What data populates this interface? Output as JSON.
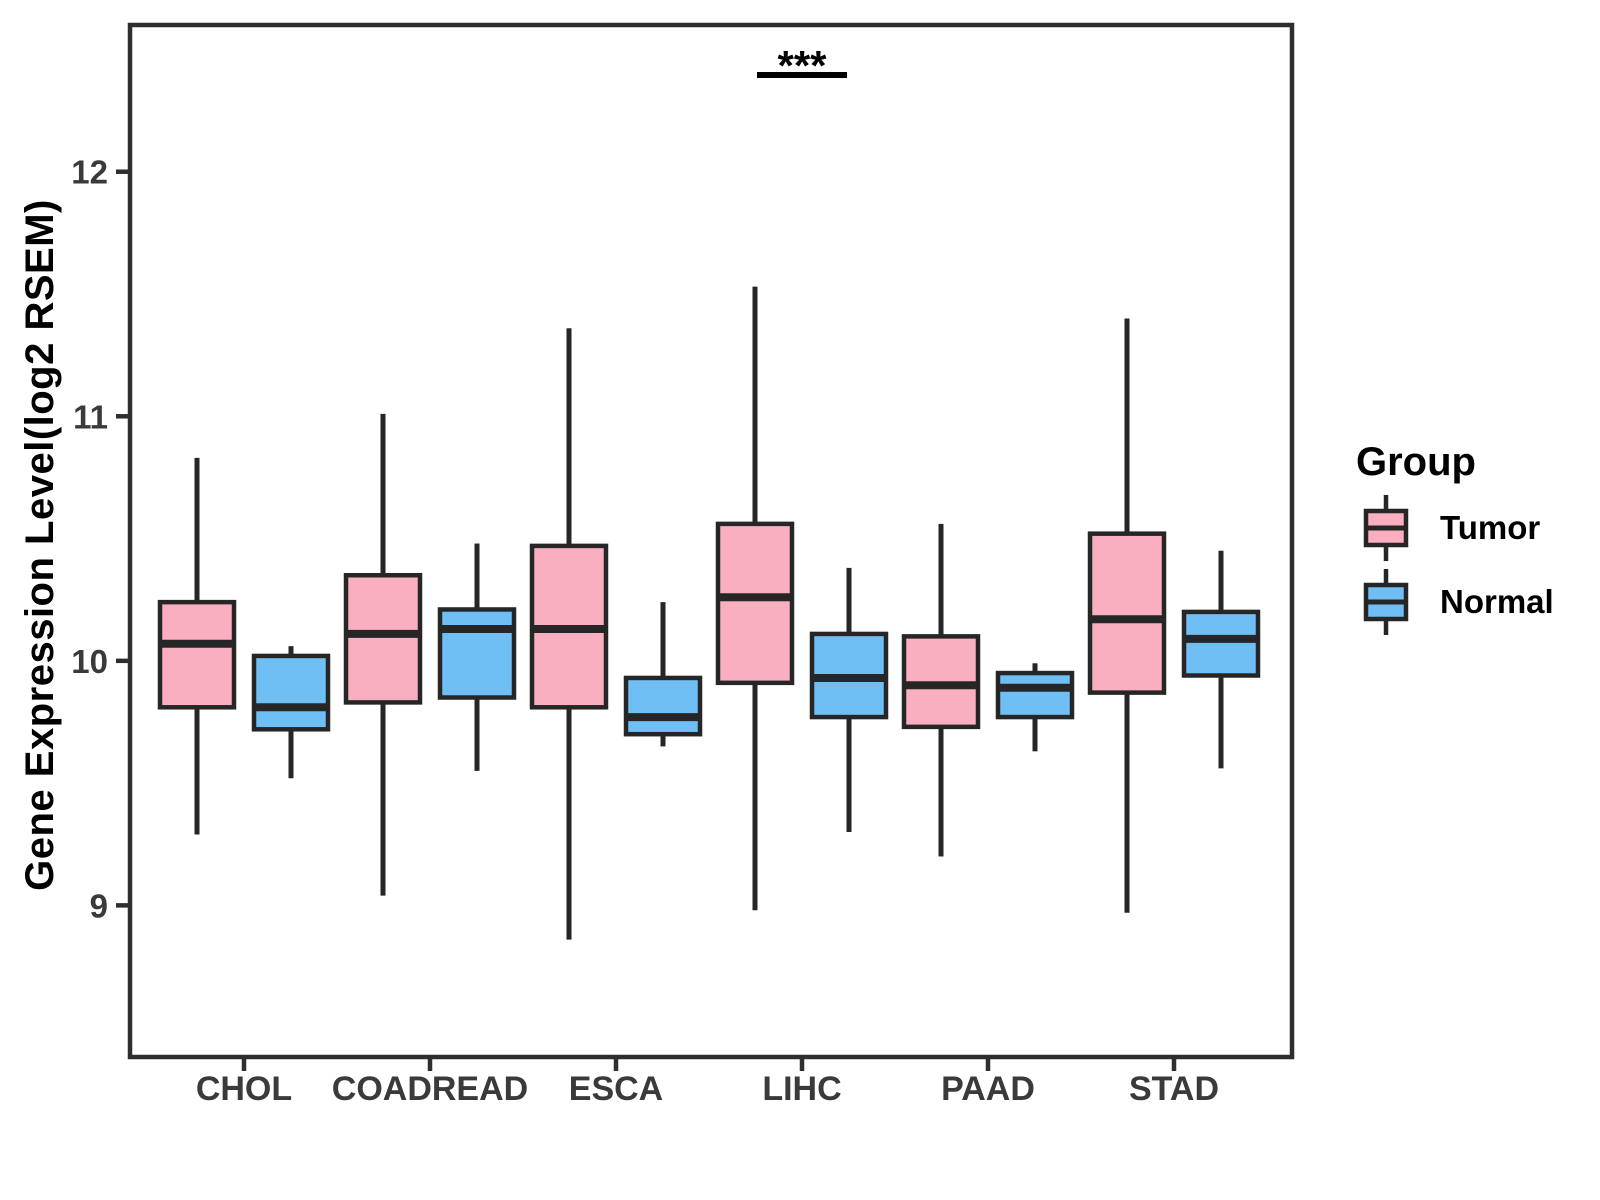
{
  "chart_data": {
    "type": "boxplot",
    "title": "",
    "xlabel": "",
    "ylabel": "Gene Expression Level(log2 RSEM)",
    "categories": [
      "CHOL",
      "COADREAD",
      "ESCA",
      "LIHC",
      "PAAD",
      "STAD"
    ],
    "y_ticks": [
      9,
      10,
      11,
      12
    ],
    "ylim": [
      8.38,
      12.6
    ],
    "grid": false,
    "legend": {
      "title": "Group",
      "position": "right",
      "entries": [
        {
          "label": "Tumor",
          "color": "#FAAFC1"
        },
        {
          "label": "Normal",
          "color": "#6FBFF5"
        }
      ]
    },
    "series": [
      {
        "name": "Tumor",
        "color": "#FAAFC1",
        "boxes": [
          {
            "category": "CHOL",
            "low": 9.29,
            "q1": 9.81,
            "median": 10.07,
            "q3": 10.24,
            "high": 10.83
          },
          {
            "category": "COADREAD",
            "low": 9.04,
            "q1": 9.83,
            "median": 10.11,
            "q3": 10.35,
            "high": 11.01
          },
          {
            "category": "ESCA",
            "low": 8.86,
            "q1": 9.81,
            "median": 10.13,
            "q3": 10.47,
            "high": 11.36
          },
          {
            "category": "LIHC",
            "low": 8.98,
            "q1": 9.91,
            "median": 10.26,
            "q3": 10.56,
            "high": 11.53
          },
          {
            "category": "PAAD",
            "low": 9.2,
            "q1": 9.73,
            "median": 9.9,
            "q3": 10.1,
            "high": 10.56
          },
          {
            "category": "STAD",
            "low": 8.97,
            "q1": 9.87,
            "median": 10.17,
            "q3": 10.52,
            "high": 11.4
          }
        ]
      },
      {
        "name": "Normal",
        "color": "#6FBFF5",
        "boxes": [
          {
            "category": "CHOL",
            "low": 9.52,
            "q1": 9.72,
            "median": 9.81,
            "q3": 10.02,
            "high": 10.06
          },
          {
            "category": "COADREAD",
            "low": 9.55,
            "q1": 9.85,
            "median": 10.13,
            "q3": 10.21,
            "high": 10.48
          },
          {
            "category": "ESCA",
            "low": 9.65,
            "q1": 9.7,
            "median": 9.77,
            "q3": 9.93,
            "high": 10.24
          },
          {
            "category": "LIHC",
            "low": 9.3,
            "q1": 9.77,
            "median": 9.93,
            "q3": 10.11,
            "high": 10.38
          },
          {
            "category": "PAAD",
            "low": 9.63,
            "q1": 9.77,
            "median": 9.89,
            "q3": 9.95,
            "high": 9.99
          },
          {
            "category": "STAD",
            "low": 9.56,
            "q1": 9.94,
            "median": 10.09,
            "q3": 10.2,
            "high": 10.45
          }
        ]
      }
    ],
    "annotation": {
      "text": "***",
      "category": "LIHC",
      "underline": true
    }
  },
  "styles": {
    "box_stroke": "#262626",
    "panel_border": "#2e2e2e",
    "tick_text_color": "#3a3a3a",
    "annotation_color": "#000000"
  }
}
